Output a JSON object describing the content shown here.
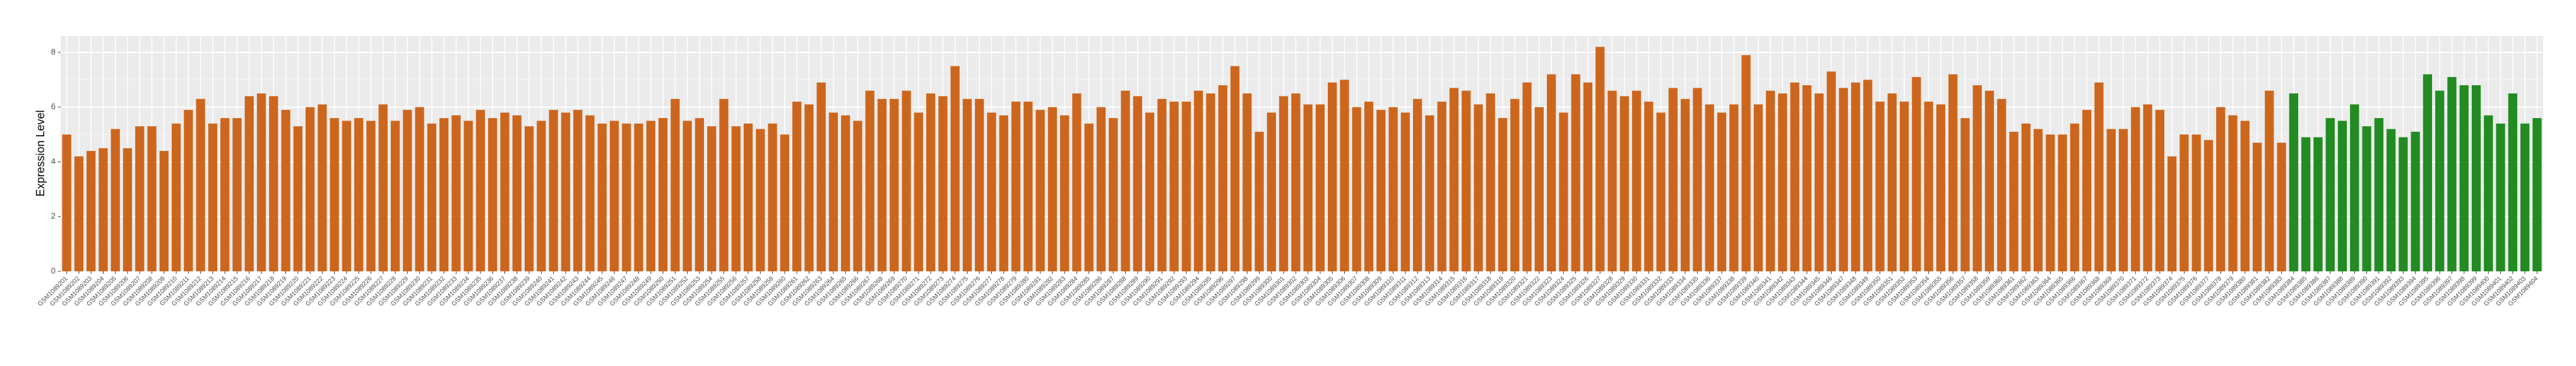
{
  "chart_data": {
    "type": "bar",
    "ylabel": "Expression Level",
    "categories": [
      "GSM1089201",
      "GSM1089202",
      "GSM1089203",
      "GSM1089204",
      "GSM1089205",
      "GSM1089206",
      "GSM1089207",
      "GSM1089208",
      "GSM1089209",
      "GSM1089210",
      "GSM1089211",
      "GSM1089212",
      "GSM1089213",
      "GSM1089214",
      "GSM1089215",
      "GSM1089216",
      "GSM1089217",
      "GSM1089218",
      "GSM1089219",
      "GSM1089220",
      "GSM1089221",
      "GSM1089222",
      "GSM1089223",
      "GSM1089224",
      "GSM1089225",
      "GSM1089226",
      "GSM1089227",
      "GSM1089228",
      "GSM1089229",
      "GSM1089230",
      "GSM1089231",
      "GSM1089232",
      "GSM1089233",
      "GSM1089234",
      "GSM1089235",
      "GSM1089236",
      "GSM1089237",
      "GSM1089238",
      "GSM1089239",
      "GSM1089240",
      "GSM1089241",
      "GSM1089242",
      "GSM1089243",
      "GSM1089244",
      "GSM1089245",
      "GSM1089246",
      "GSM1089247",
      "GSM1089248",
      "GSM1089249",
      "GSM1089250",
      "GSM1089251",
      "GSM1089252",
      "GSM1089253",
      "GSM1089254",
      "GSM1089255",
      "GSM1089256",
      "GSM1089257",
      "GSM1089258",
      "GSM1089259",
      "GSM1089260",
      "GSM1089261",
      "GSM1089262",
      "GSM1089263",
      "GSM1089264",
      "GSM1089265",
      "GSM1089266",
      "GSM1089267",
      "GSM1089268",
      "GSM1089269",
      "GSM1089270",
      "GSM1089271",
      "GSM1089272",
      "GSM1089273",
      "GSM1089274",
      "GSM1089275",
      "GSM1089276",
      "GSM1089277",
      "GSM1089278",
      "GSM1089279",
      "GSM1089280",
      "GSM1089281",
      "GSM1089282",
      "GSM1089283",
      "GSM1089284",
      "GSM1089285",
      "GSM1089286",
      "GSM1089287",
      "GSM1089288",
      "GSM1089289",
      "GSM1089290",
      "GSM1089291",
      "GSM1089292",
      "GSM1089293",
      "GSM1089294",
      "GSM1089295",
      "GSM1089296",
      "GSM1089297",
      "GSM1089298",
      "GSM1089299",
      "GSM1089300",
      "GSM1089301",
      "GSM1089302",
      "GSM1089303",
      "GSM1089304",
      "GSM1089305",
      "GSM1089306",
      "GSM1089307",
      "GSM1089308",
      "GSM1089309",
      "GSM1089310",
      "GSM1089311",
      "GSM1089312",
      "GSM1089313",
      "GSM1089314",
      "GSM1089315",
      "GSM1089316",
      "GSM1089317",
      "GSM1089318",
      "GSM1089319",
      "GSM1089320",
      "GSM1089321",
      "GSM1089322",
      "GSM1089323",
      "GSM1089324",
      "GSM1089325",
      "GSM1089326",
      "GSM1089327",
      "GSM1089328",
      "GSM1089329",
      "GSM1089330",
      "GSM1089331",
      "GSM1089332",
      "GSM1089333",
      "GSM1089334",
      "GSM1089335",
      "GSM1089336",
      "GSM1089337",
      "GSM1089338",
      "GSM1089339",
      "GSM1089340",
      "GSM1089341",
      "GSM1089342",
      "GSM1089343",
      "GSM1089344",
      "GSM1089345",
      "GSM1089346",
      "GSM1089347",
      "GSM1089348",
      "GSM1089349",
      "GSM1089350",
      "GSM1089351",
      "GSM1089352",
      "GSM1089353",
      "GSM1089354",
      "GSM1089355",
      "GSM1089356",
      "GSM1089357",
      "GSM1089358",
      "GSM1089359",
      "GSM1089360",
      "GSM1089361",
      "GSM1089362",
      "GSM1089363",
      "GSM1089364",
      "GSM1089365",
      "GSM1089366",
      "GSM1089367",
      "GSM1089368",
      "GSM1089369",
      "GSM1089370",
      "GSM1089371",
      "GSM1089372",
      "GSM1089373",
      "GSM1089374",
      "GSM1089375",
      "GSM1089376",
      "GSM1089377",
      "GSM1089378",
      "GSM1089379",
      "GSM1089380",
      "GSM1089381",
      "GSM1089382",
      "GSM1089383",
      "GSM1089384",
      "GSM1089385",
      "GSM1089386",
      "GSM1089387",
      "GSM1089388",
      "GSM1089389",
      "GSM1089390",
      "GSM1089391",
      "GSM1089392",
      "GSM1089393",
      "GSM1089394",
      "GSM1089395",
      "GSM1089396",
      "GSM1089397",
      "GSM1089398",
      "GSM1089399",
      "GSM1089400",
      "GSM1089401",
      "GSM1089402",
      "GSM1089403",
      "GSM1089404"
    ],
    "values": [
      5.0,
      4.2,
      4.4,
      4.5,
      5.2,
      4.5,
      5.3,
      5.3,
      4.4,
      5.4,
      5.9,
      6.3,
      5.4,
      5.6,
      5.6,
      6.4,
      6.5,
      6.4,
      5.9,
      5.3,
      6.0,
      6.1,
      5.6,
      5.5,
      5.6,
      5.5,
      6.1,
      5.5,
      5.9,
      6.0,
      5.4,
      5.6,
      5.7,
      5.5,
      5.9,
      5.6,
      5.8,
      5.7,
      5.3,
      5.5,
      5.9,
      5.8,
      5.9,
      5.7,
      5.4,
      5.5,
      5.4,
      5.4,
      5.5,
      5.6,
      6.3,
      5.5,
      5.6,
      5.3,
      6.3,
      5.3,
      5.4,
      5.2,
      5.4,
      5.0,
      6.2,
      6.1,
      6.9,
      5.8,
      5.7,
      5.5,
      6.6,
      6.3,
      6.3,
      6.6,
      5.8,
      6.5,
      6.4,
      7.5,
      6.3,
      6.3,
      5.8,
      5.7,
      6.2,
      6.2,
      5.9,
      6.0,
      5.7,
      6.5,
      5.4,
      6.0,
      5.6,
      6.6,
      6.4,
      5.8,
      6.3,
      6.2,
      6.2,
      6.6,
      6.5,
      6.8,
      7.5,
      6.5,
      5.1,
      5.8,
      6.4,
      6.5,
      6.1,
      6.1,
      6.9,
      7.0,
      6.0,
      6.2,
      5.9,
      6.0,
      5.8,
      6.3,
      5.7,
      6.2,
      6.7,
      6.6,
      6.1,
      6.5,
      5.6,
      6.3,
      6.9,
      6.0,
      7.2,
      5.8,
      7.2,
      6.9,
      8.2,
      6.6,
      6.4,
      6.6,
      6.2,
      5.8,
      6.7,
      6.3,
      6.7,
      6.1,
      5.8,
      6.1,
      7.9,
      6.1,
      6.6,
      6.5,
      6.9,
      6.8,
      6.5,
      7.3,
      6.7,
      6.9,
      7.0,
      6.2,
      6.5,
      6.2,
      7.1,
      6.2,
      6.1,
      7.2,
      5.6,
      6.8,
      6.6,
      6.3,
      5.1,
      5.4,
      5.2,
      5.0,
      5.0,
      5.4,
      5.9,
      6.9,
      5.2,
      5.2,
      6.0,
      6.1,
      5.9,
      4.2,
      5.0,
      5.0,
      4.8,
      6.0,
      5.7,
      5.5,
      4.7,
      6.6,
      4.7,
      6.5,
      4.9,
      4.9,
      5.6,
      5.5,
      6.1,
      5.3,
      5.6,
      5.2,
      4.9,
      5.1,
      7.2,
      6.6,
      7.1,
      6.8,
      6.8,
      5.7,
      5.4,
      6.5,
      5.4,
      5.6
    ],
    "colors": [
      "#cd661d",
      "#cd661d",
      "#cd661d",
      "#cd661d",
      "#cd661d",
      "#cd661d",
      "#cd661d",
      "#cd661d",
      "#cd661d",
      "#cd661d",
      "#cd661d",
      "#cd661d",
      "#cd661d",
      "#cd661d",
      "#cd661d",
      "#cd661d",
      "#cd661d",
      "#cd661d",
      "#cd661d",
      "#cd661d",
      "#cd661d",
      "#cd661d",
      "#cd661d",
      "#cd661d",
      "#cd661d",
      "#cd661d",
      "#cd661d",
      "#cd661d",
      "#cd661d",
      "#cd661d",
      "#cd661d",
      "#cd661d",
      "#cd661d",
      "#cd661d",
      "#cd661d",
      "#cd661d",
      "#cd661d",
      "#cd661d",
      "#cd661d",
      "#cd661d",
      "#cd661d",
      "#cd661d",
      "#cd661d",
      "#cd661d",
      "#cd661d",
      "#cd661d",
      "#cd661d",
      "#cd661d",
      "#cd661d",
      "#cd661d",
      "#cd661d",
      "#cd661d",
      "#cd661d",
      "#cd661d",
      "#cd661d",
      "#cd661d",
      "#cd661d",
      "#cd661d",
      "#cd661d",
      "#cd661d",
      "#cd661d",
      "#cd661d",
      "#cd661d",
      "#cd661d",
      "#cd661d",
      "#cd661d",
      "#cd661d",
      "#cd661d",
      "#cd661d",
      "#cd661d",
      "#cd661d",
      "#cd661d",
      "#cd661d",
      "#cd661d",
      "#cd661d",
      "#cd661d",
      "#cd661d",
      "#cd661d",
      "#cd661d",
      "#cd661d",
      "#cd661d",
      "#cd661d",
      "#cd661d",
      "#cd661d",
      "#cd661d",
      "#cd661d",
      "#cd661d",
      "#cd661d",
      "#cd661d",
      "#cd661d",
      "#cd661d",
      "#cd661d",
      "#cd661d",
      "#cd661d",
      "#cd661d",
      "#cd661d",
      "#cd661d",
      "#cd661d",
      "#cd661d",
      "#cd661d",
      "#cd661d",
      "#cd661d",
      "#cd661d",
      "#cd661d",
      "#cd661d",
      "#cd661d",
      "#cd661d",
      "#cd661d",
      "#cd661d",
      "#cd661d",
      "#cd661d",
      "#cd661d",
      "#cd661d",
      "#cd661d",
      "#cd661d",
      "#cd661d",
      "#cd661d",
      "#cd661d",
      "#cd661d",
      "#cd661d",
      "#cd661d",
      "#cd661d",
      "#cd661d",
      "#cd661d",
      "#cd661d",
      "#cd661d",
      "#cd661d",
      "#cd661d",
      "#cd661d",
      "#cd661d",
      "#cd661d",
      "#cd661d",
      "#cd661d",
      "#cd661d",
      "#cd661d",
      "#cd661d",
      "#cd661d",
      "#cd661d",
      "#cd661d",
      "#cd661d",
      "#cd661d",
      "#cd661d",
      "#cd661d",
      "#cd661d",
      "#cd661d",
      "#cd661d",
      "#cd661d",
      "#cd661d",
      "#cd661d",
      "#cd661d",
      "#cd661d",
      "#cd661d",
      "#cd661d",
      "#cd661d",
      "#cd661d",
      "#cd661d",
      "#cd661d",
      "#cd661d",
      "#cd661d",
      "#cd661d",
      "#cd661d",
      "#cd661d",
      "#cd661d",
      "#cd661d",
      "#cd661d",
      "#cd661d",
      "#cd661d",
      "#cd661d",
      "#cd661d",
      "#cd661d",
      "#cd661d",
      "#cd661d",
      "#cd661d",
      "#cd661d",
      "#cd661d",
      "#cd661d",
      "#cd661d",
      "#cd661d",
      "#cd661d",
      "#cd661d",
      "#cd661d",
      "#cd661d",
      "#cd661d",
      "#228b22",
      "#228b22",
      "#228b22",
      "#228b22",
      "#228b22",
      "#228b22",
      "#228b22",
      "#228b22",
      "#228b22",
      "#228b22",
      "#228b22",
      "#228b22",
      "#228b22",
      "#228b22",
      "#228b22",
      "#228b22",
      "#228b22",
      "#228b22",
      "#228b22",
      "#228b22",
      "#228b22"
    ],
    "ylim": [
      0,
      8.6
    ],
    "yticks": [
      0,
      2,
      4,
      6,
      8
    ],
    "grid": true
  }
}
